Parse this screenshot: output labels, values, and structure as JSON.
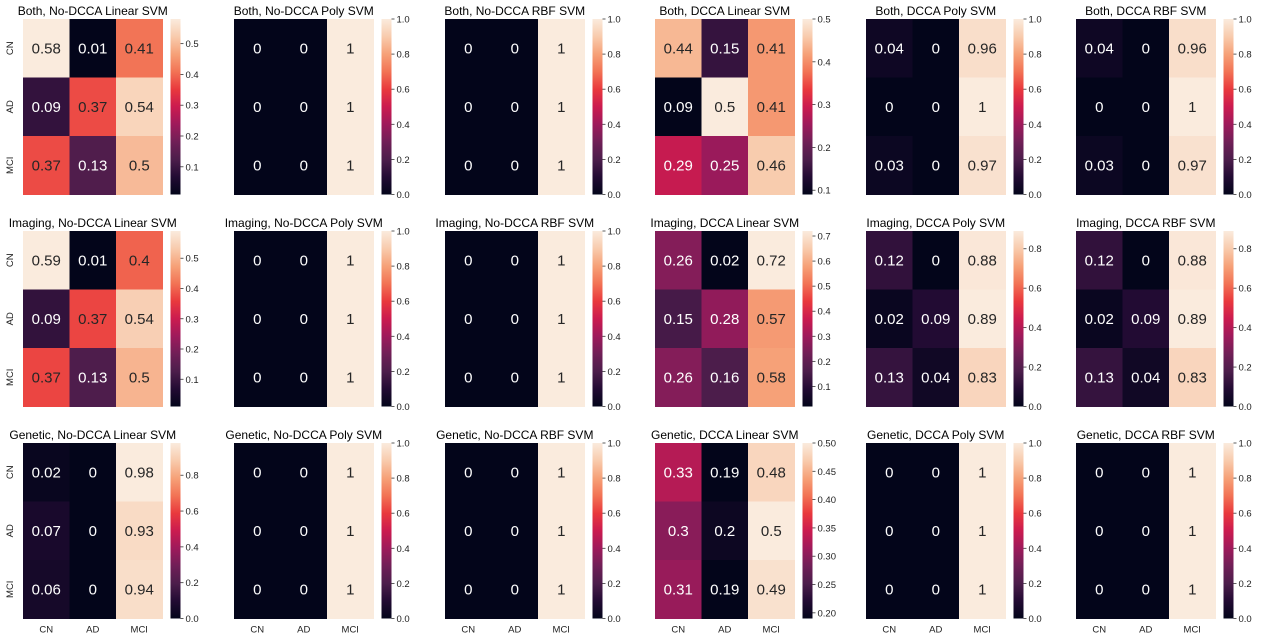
{
  "figure": {
    "title": ""
  },
  "colormap": {
    "name": "rocket",
    "stops": [
      "#03051a",
      "#220b33",
      "#4c1d4b",
      "#701f57",
      "#9e1a5b",
      "#cb1b4f",
      "#e9393d",
      "#f27355",
      "#f6a178",
      "#f8cbad",
      "#faebdd"
    ]
  },
  "chart_data": [
    {
      "type": "heatmap",
      "title": "Both, No-DCCA Linear SVM",
      "x_labels": [
        "CN",
        "AD",
        "MCI"
      ],
      "y_labels": [
        "CN",
        "AD",
        "MCI"
      ],
      "values": [
        [
          0.58,
          0.01,
          0.41
        ],
        [
          0.09,
          0.37,
          0.54
        ],
        [
          0.37,
          0.13,
          0.5
        ]
      ],
      "vmin": 0.01,
      "vmax": 0.58,
      "colorbar_ticks": [
        "0.5",
        "0.4",
        "0.3",
        "0.2",
        "0.1"
      ],
      "colorbar_tick_values": [
        0.5,
        0.4,
        0.3,
        0.2,
        0.1
      ]
    },
    {
      "type": "heatmap",
      "title": "Both, No-DCCA Poly SVM",
      "x_labels": [
        "CN",
        "AD",
        "MCI"
      ],
      "y_labels": [
        "CN",
        "AD",
        "MCI"
      ],
      "values": [
        [
          0,
          0,
          1
        ],
        [
          0,
          0,
          1
        ],
        [
          0,
          0,
          1
        ]
      ],
      "vmin": 0,
      "vmax": 1,
      "colorbar_ticks": [
        "1.0",
        "0.8",
        "0.6",
        "0.4",
        "0.2",
        "0.0"
      ],
      "colorbar_tick_values": [
        1.0,
        0.8,
        0.6,
        0.4,
        0.2,
        0.0
      ]
    },
    {
      "type": "heatmap",
      "title": "Both, No-DCCA RBF SVM",
      "x_labels": [
        "CN",
        "AD",
        "MCI"
      ],
      "y_labels": [
        "CN",
        "AD",
        "MCI"
      ],
      "values": [
        [
          0,
          0,
          1
        ],
        [
          0,
          0,
          1
        ],
        [
          0,
          0,
          1
        ]
      ],
      "vmin": 0,
      "vmax": 1,
      "colorbar_ticks": [
        "1.0",
        "0.8",
        "0.6",
        "0.4",
        "0.2",
        "0.0"
      ],
      "colorbar_tick_values": [
        1.0,
        0.8,
        0.6,
        0.4,
        0.2,
        0.0
      ]
    },
    {
      "type": "heatmap",
      "title": "Both, DCCA Linear SVM",
      "x_labels": [
        "CN",
        "AD",
        "MCI"
      ],
      "y_labels": [
        "CN",
        "AD",
        "MCI"
      ],
      "values": [
        [
          0.44,
          0.15,
          0.41
        ],
        [
          0.09,
          0.5,
          0.41
        ],
        [
          0.29,
          0.25,
          0.46
        ]
      ],
      "vmin": 0.09,
      "vmax": 0.5,
      "colorbar_ticks": [
        "0.5",
        "0.4",
        "0.3",
        "0.2",
        "0.1"
      ],
      "colorbar_tick_values": [
        0.5,
        0.4,
        0.3,
        0.2,
        0.1
      ]
    },
    {
      "type": "heatmap",
      "title": "Both, DCCA Poly SVM",
      "x_labels": [
        "CN",
        "AD",
        "MCI"
      ],
      "y_labels": [
        "CN",
        "AD",
        "MCI"
      ],
      "values": [
        [
          0.04,
          0,
          0.96
        ],
        [
          0,
          0,
          1
        ],
        [
          0.03,
          0,
          0.97
        ]
      ],
      "vmin": 0,
      "vmax": 1,
      "colorbar_ticks": [
        "1.0",
        "0.8",
        "0.6",
        "0.4",
        "0.2",
        "0.0"
      ],
      "colorbar_tick_values": [
        1.0,
        0.8,
        0.6,
        0.4,
        0.2,
        0.0
      ]
    },
    {
      "type": "heatmap",
      "title": "Both, DCCA RBF SVM",
      "x_labels": [
        "CN",
        "AD",
        "MCI"
      ],
      "y_labels": [
        "CN",
        "AD",
        "MCI"
      ],
      "values": [
        [
          0.04,
          0,
          0.96
        ],
        [
          0,
          0,
          1
        ],
        [
          0.03,
          0,
          0.97
        ]
      ],
      "vmin": 0,
      "vmax": 1,
      "colorbar_ticks": [
        "1.0",
        "0.8",
        "0.6",
        "0.4",
        "0.2",
        "0.0"
      ],
      "colorbar_tick_values": [
        1.0,
        0.8,
        0.6,
        0.4,
        0.2,
        0.0
      ]
    },
    {
      "type": "heatmap",
      "title": "Imaging, No-DCCA Linear SVM",
      "x_labels": [
        "CN",
        "AD",
        "MCI"
      ],
      "y_labels": [
        "CN",
        "AD",
        "MCI"
      ],
      "values": [
        [
          0.59,
          0.01,
          0.4
        ],
        [
          0.09,
          0.37,
          0.54
        ],
        [
          0.37,
          0.13,
          0.5
        ]
      ],
      "vmin": 0.01,
      "vmax": 0.59,
      "colorbar_ticks": [
        "0.5",
        "0.4",
        "0.3",
        "0.2",
        "0.1"
      ],
      "colorbar_tick_values": [
        0.5,
        0.4,
        0.3,
        0.2,
        0.1
      ]
    },
    {
      "type": "heatmap",
      "title": "Imaging, No-DCCA Poly SVM",
      "x_labels": [
        "CN",
        "AD",
        "MCI"
      ],
      "y_labels": [
        "CN",
        "AD",
        "MCI"
      ],
      "values": [
        [
          0,
          0,
          1
        ],
        [
          0,
          0,
          1
        ],
        [
          0,
          0,
          1
        ]
      ],
      "vmin": 0,
      "vmax": 1,
      "colorbar_ticks": [
        "1.0",
        "0.8",
        "0.6",
        "0.4",
        "0.2",
        "0.0"
      ],
      "colorbar_tick_values": [
        1.0,
        0.8,
        0.6,
        0.4,
        0.2,
        0.0
      ]
    },
    {
      "type": "heatmap",
      "title": "Imaging, No-DCCA RBF SVM",
      "x_labels": [
        "CN",
        "AD",
        "MCI"
      ],
      "y_labels": [
        "CN",
        "AD",
        "MCI"
      ],
      "values": [
        [
          0,
          0,
          1
        ],
        [
          0,
          0,
          1
        ],
        [
          0,
          0,
          1
        ]
      ],
      "vmin": 0,
      "vmax": 1,
      "colorbar_ticks": [
        "1.0",
        "0.8",
        "0.6",
        "0.4",
        "0.2",
        "0.0"
      ],
      "colorbar_tick_values": [
        1.0,
        0.8,
        0.6,
        0.4,
        0.2,
        0.0
      ]
    },
    {
      "type": "heatmap",
      "title": "Imaging, DCCA Linear SVM",
      "x_labels": [
        "CN",
        "AD",
        "MCI"
      ],
      "y_labels": [
        "CN",
        "AD",
        "MCI"
      ],
      "values": [
        [
          0.26,
          0.02,
          0.72
        ],
        [
          0.15,
          0.28,
          0.57
        ],
        [
          0.26,
          0.16,
          0.58
        ]
      ],
      "vmin": 0.02,
      "vmax": 0.72,
      "colorbar_ticks": [
        "0.7",
        "0.6",
        "0.5",
        "0.4",
        "0.3",
        "0.2",
        "0.1"
      ],
      "colorbar_tick_values": [
        0.7,
        0.6,
        0.5,
        0.4,
        0.3,
        0.2,
        0.1
      ]
    },
    {
      "type": "heatmap",
      "title": "Imaging, DCCA Poly SVM",
      "x_labels": [
        "CN",
        "AD",
        "MCI"
      ],
      "y_labels": [
        "CN",
        "AD",
        "MCI"
      ],
      "values": [
        [
          0.12,
          0,
          0.88
        ],
        [
          0.02,
          0.09,
          0.89
        ],
        [
          0.13,
          0.04,
          0.83
        ]
      ],
      "vmin": 0,
      "vmax": 0.89,
      "colorbar_ticks": [
        "0.8",
        "0.6",
        "0.4",
        "0.2",
        "0.0"
      ],
      "colorbar_tick_values": [
        0.8,
        0.6,
        0.4,
        0.2,
        0.0
      ]
    },
    {
      "type": "heatmap",
      "title": "Imaging, DCCA RBF SVM",
      "x_labels": [
        "CN",
        "AD",
        "MCI"
      ],
      "y_labels": [
        "CN",
        "AD",
        "MCI"
      ],
      "values": [
        [
          0.12,
          0,
          0.88
        ],
        [
          0.02,
          0.09,
          0.89
        ],
        [
          0.13,
          0.04,
          0.83
        ]
      ],
      "vmin": 0,
      "vmax": 0.89,
      "colorbar_ticks": [
        "0.8",
        "0.6",
        "0.4",
        "0.2",
        "0.0"
      ],
      "colorbar_tick_values": [
        0.8,
        0.6,
        0.4,
        0.2,
        0.0
      ]
    },
    {
      "type": "heatmap",
      "title": "Genetic, No-DCCA Linear SVM",
      "x_labels": [
        "CN",
        "AD",
        "MCI"
      ],
      "y_labels": [
        "CN",
        "AD",
        "MCI"
      ],
      "values": [
        [
          0.02,
          0,
          0.98
        ],
        [
          0.07,
          0,
          0.93
        ],
        [
          0.06,
          0,
          0.94
        ]
      ],
      "vmin": 0,
      "vmax": 0.98,
      "colorbar_ticks": [
        "0.8",
        "0.6",
        "0.4",
        "0.2",
        "0.0"
      ],
      "colorbar_tick_values": [
        0.8,
        0.6,
        0.4,
        0.2,
        0.0
      ]
    },
    {
      "type": "heatmap",
      "title": "Genetic, No-DCCA Poly SVM",
      "x_labels": [
        "CN",
        "AD",
        "MCI"
      ],
      "y_labels": [
        "CN",
        "AD",
        "MCI"
      ],
      "values": [
        [
          0,
          0,
          1
        ],
        [
          0,
          0,
          1
        ],
        [
          0,
          0,
          1
        ]
      ],
      "vmin": 0,
      "vmax": 1,
      "colorbar_ticks": [
        "1.0",
        "0.8",
        "0.6",
        "0.4",
        "0.2",
        "0.0"
      ],
      "colorbar_tick_values": [
        1.0,
        0.8,
        0.6,
        0.4,
        0.2,
        0.0
      ]
    },
    {
      "type": "heatmap",
      "title": "Genetic, No-DCCA RBF SVM",
      "x_labels": [
        "CN",
        "AD",
        "MCI"
      ],
      "y_labels": [
        "CN",
        "AD",
        "MCI"
      ],
      "values": [
        [
          0,
          0,
          1
        ],
        [
          0,
          0,
          1
        ],
        [
          0,
          0,
          1
        ]
      ],
      "vmin": 0,
      "vmax": 1,
      "colorbar_ticks": [
        "1.0",
        "0.8",
        "0.6",
        "0.4",
        "0.2",
        "0.0"
      ],
      "colorbar_tick_values": [
        1.0,
        0.8,
        0.6,
        0.4,
        0.2,
        0.0
      ]
    },
    {
      "type": "heatmap",
      "title": "Genetic, DCCA Linear SVM",
      "x_labels": [
        "CN",
        "AD",
        "MCI"
      ],
      "y_labels": [
        "CN",
        "AD",
        "MCI"
      ],
      "values": [
        [
          0.33,
          0.19,
          0.48
        ],
        [
          0.3,
          0.2,
          0.5
        ],
        [
          0.31,
          0.19,
          0.49
        ]
      ],
      "vmin": 0.19,
      "vmax": 0.5,
      "colorbar_ticks": [
        "0.50",
        "0.45",
        "0.40",
        "0.35",
        "0.30",
        "0.25",
        "0.20"
      ],
      "colorbar_tick_values": [
        0.5,
        0.45,
        0.4,
        0.35,
        0.3,
        0.25,
        0.2
      ]
    },
    {
      "type": "heatmap",
      "title": "Genetic, DCCA Poly SVM",
      "x_labels": [
        "CN",
        "AD",
        "MCI"
      ],
      "y_labels": [
        "CN",
        "AD",
        "MCI"
      ],
      "values": [
        [
          0,
          0,
          1
        ],
        [
          0,
          0,
          1
        ],
        [
          0,
          0,
          1
        ]
      ],
      "vmin": 0,
      "vmax": 1,
      "colorbar_ticks": [
        "1.0",
        "0.8",
        "0.6",
        "0.4",
        "0.2",
        "0.0"
      ],
      "colorbar_tick_values": [
        1.0,
        0.8,
        0.6,
        0.4,
        0.2,
        0.0
      ]
    },
    {
      "type": "heatmap",
      "title": "Genetic, DCCA RBF SVM",
      "x_labels": [
        "CN",
        "AD",
        "MCI"
      ],
      "y_labels": [
        "CN",
        "AD",
        "MCI"
      ],
      "values": [
        [
          0,
          0,
          1
        ],
        [
          0,
          0,
          1
        ],
        [
          0,
          0,
          1
        ]
      ],
      "vmin": 0,
      "vmax": 1,
      "colorbar_ticks": [
        "1.0",
        "0.8",
        "0.6",
        "0.4",
        "0.2",
        "0.0"
      ],
      "colorbar_tick_values": [
        1.0,
        0.8,
        0.6,
        0.4,
        0.2,
        0.0
      ]
    }
  ]
}
